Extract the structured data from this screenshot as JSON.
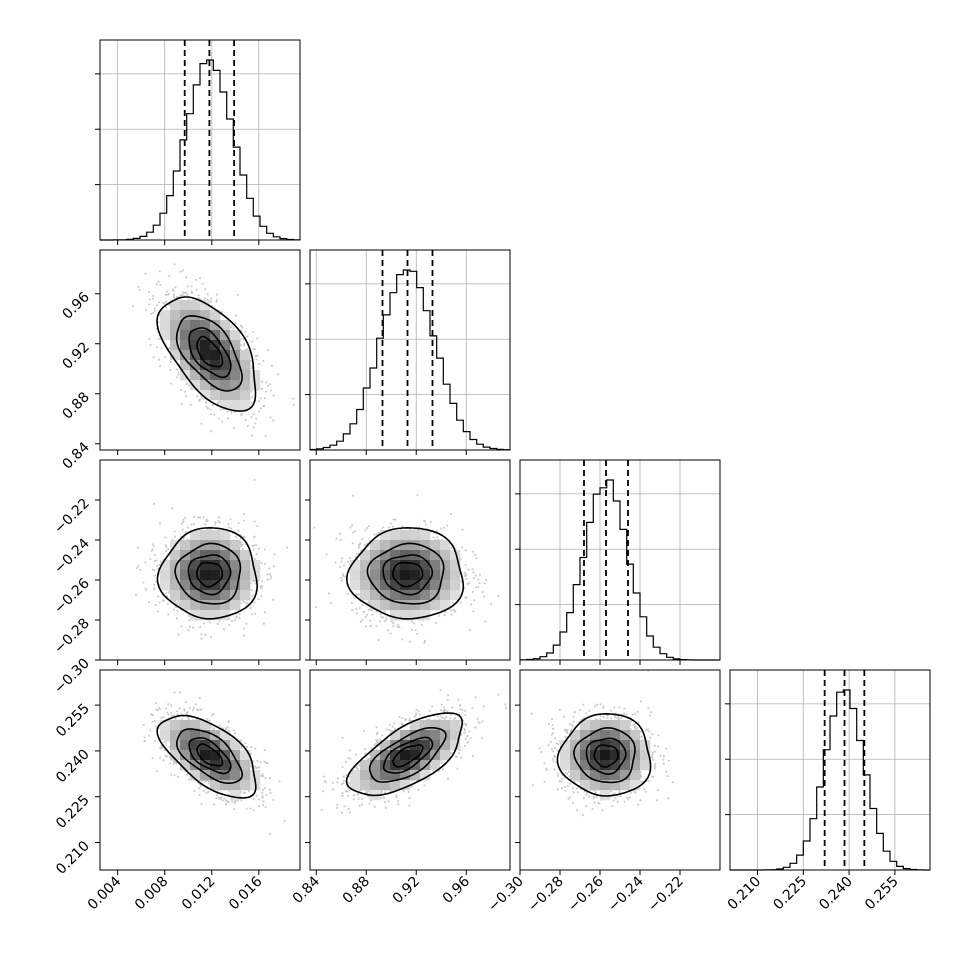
{
  "chart_data": {
    "type": "corner",
    "title": "",
    "parameters": [
      {
        "index": 0,
        "mean": 0.0118,
        "std": 0.002,
        "range": [
          0.0025,
          0.0195
        ],
        "ticks": [
          0.004,
          0.008,
          0.012,
          0.016
        ],
        "tick_labels": [
          "0.004",
          "0.008",
          "0.012",
          "0.016"
        ],
        "quantiles": [
          0.0097,
          0.0118,
          0.0139
        ]
      },
      {
        "index": 1,
        "mean": 0.913,
        "std": 0.022,
        "range": [
          0.835,
          0.995
        ],
        "ticks": [
          0.84,
          0.88,
          0.92,
          0.96
        ],
        "tick_labels": [
          "0.84",
          "0.88",
          "0.92",
          "0.96"
        ],
        "quantiles": [
          0.893,
          0.913,
          0.933
        ]
      },
      {
        "index": 2,
        "mean": -0.257,
        "std": 0.011,
        "range": [
          -0.3,
          -0.2
        ],
        "ticks": [
          -0.3,
          -0.28,
          -0.26,
          -0.24,
          -0.22
        ],
        "tick_labels": [
          "−0.30",
          "−0.28",
          "−0.26",
          "−0.24",
          "−0.22"
        ],
        "quantiles": [
          -0.268,
          -0.257,
          -0.246
        ]
      },
      {
        "index": 3,
        "mean": 0.2385,
        "std": 0.0065,
        "range": [
          0.201,
          0.2665
        ],
        "ticks": [
          0.21,
          0.225,
          0.24,
          0.255
        ],
        "tick_labels": [
          "0.210",
          "0.225",
          "0.240",
          "0.255"
        ],
        "quantiles": [
          0.232,
          0.2385,
          0.245
        ]
      }
    ],
    "correlations": [
      {
        "pair": [
          0,
          1
        ],
        "rho": -0.55
      },
      {
        "pair": [
          0,
          2
        ],
        "rho": 0.0
      },
      {
        "pair": [
          1,
          2
        ],
        "rho": 0.0
      },
      {
        "pair": [
          0,
          3
        ],
        "rho": -0.6
      },
      {
        "pair": [
          1,
          3
        ],
        "rho": 0.65
      },
      {
        "pair": [
          2,
          3
        ],
        "rho": 0.0
      }
    ],
    "contour_levels_sigma": [
      0.5,
      1.0,
      1.5,
      2.0
    ],
    "histogram_bins": 30,
    "quantile_lines": [
      0.16,
      0.5,
      0.84
    ],
    "grid": true
  }
}
